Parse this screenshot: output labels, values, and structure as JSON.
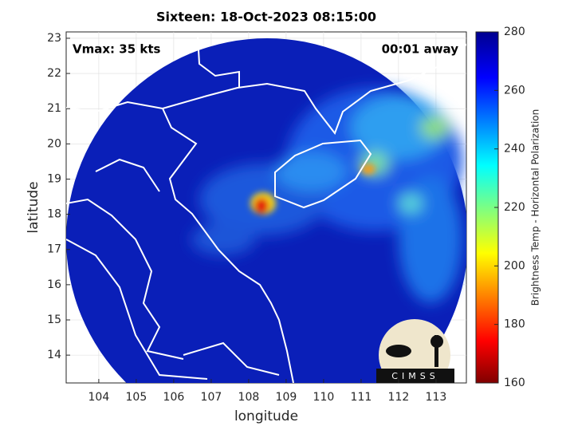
{
  "map": {
    "title": "Sixteen: 18-Oct-2023 08:15:00",
    "annotations": {
      "vmax": "Vmax: 35 kts",
      "time_away": "00:01 away"
    },
    "x_axis": {
      "label": "longitude",
      "lim": [
        103.13,
        113.81
      ],
      "ticks": [
        104,
        105,
        106,
        107,
        108,
        109,
        110,
        111,
        112,
        113
      ]
    },
    "y_axis": {
      "label": "latitude",
      "lim": [
        13.21,
        23.18
      ],
      "ticks": [
        14,
        15,
        16,
        17,
        18,
        19,
        20,
        21,
        22,
        23
      ]
    }
  },
  "colorbar": {
    "label": "Brightness Temp - Horizontal Polarization",
    "lim": [
      160,
      280
    ],
    "ticks": [
      160,
      180,
      200,
      220,
      240,
      260,
      280
    ]
  },
  "logo": {
    "text": "CIMSS"
  }
}
